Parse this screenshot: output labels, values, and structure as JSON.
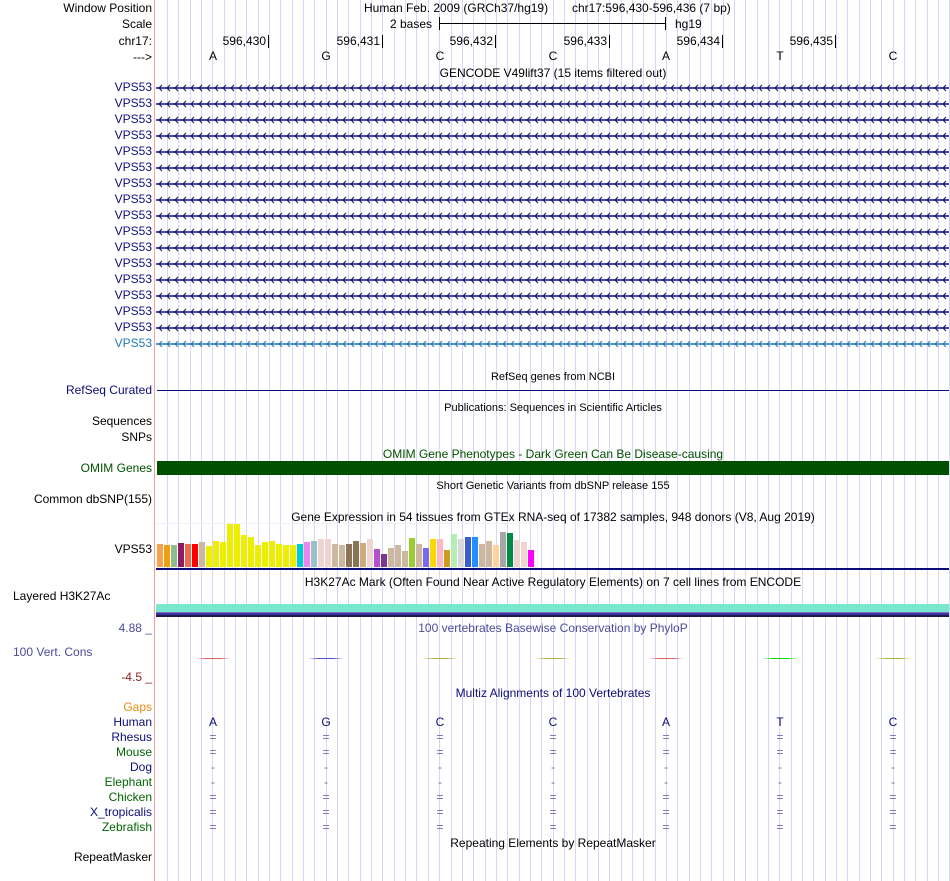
{
  "header": {
    "window_position_label": "Window Position",
    "scale_label": "Scale",
    "chrom_label": "chr17:",
    "strand_label": "--->",
    "assembly": "Human Feb. 2009 (GRCh37/hg19)",
    "position": "chr17:596,430-596,436 (7 bp)",
    "scale_text": "2 bases",
    "db": "hg19",
    "coords": [
      "596,430",
      "596,431",
      "596,432",
      "596,433",
      "596,434",
      "596,435"
    ],
    "bases": [
      "A",
      "G",
      "C",
      "C",
      "A",
      "T",
      "C"
    ]
  },
  "tracks": {
    "gencode": {
      "title": "GENCODE V49lift37 (15 items filtered out)",
      "items": [
        "VPS53",
        "VPS53",
        "VPS53",
        "VPS53",
        "VPS53",
        "VPS53",
        "VPS53",
        "VPS53",
        "VPS53",
        "VPS53",
        "VPS53",
        "VPS53",
        "VPS53",
        "VPS53",
        "VPS53",
        "VPS53",
        "VPS53"
      ],
      "color": "#0c0c78",
      "last_color": "#1f77b4"
    },
    "refseq": {
      "label": "RefSeq Curated",
      "title": "RefSeq genes from NCBI",
      "color": "#0c0c78"
    },
    "pubs": {
      "label": "Sequences",
      "title": "Publications: Sequences in Scientific Articles"
    },
    "snps": {
      "label": "SNPs"
    },
    "omim": {
      "label": "OMIM Genes",
      "title": "OMIM Gene Phenotypes - Dark Green Can Be Disease-causing",
      "color": "#005000"
    },
    "dbsnp": {
      "label": "Common dbSNP(155)",
      "title": "Short Genetic Variants from dbSNP release 155"
    },
    "gtex": {
      "label": "VPS53",
      "title": "Gene Expression in 54 tissues from GTEx RNA-seq of 17382 samples, 948 donors (V8, Aug 2019)",
      "bars": [
        {
          "c": "#f7a24c",
          "v": 0.54
        },
        {
          "c": "#f0a00f",
          "v": 0.52
        },
        {
          "c": "#8fbc8f",
          "v": 0.52
        },
        {
          "c": "#8b1c62",
          "v": 0.56
        },
        {
          "c": "#ee6a50",
          "v": 0.54
        },
        {
          "c": "#ff0000",
          "v": 0.54
        },
        {
          "c": "#cdb79e",
          "v": 0.58
        },
        {
          "c": "#eeee00",
          "v": 0.48
        },
        {
          "c": "#eeee00",
          "v": 0.6
        },
        {
          "c": "#eeee00",
          "v": 0.58
        },
        {
          "c": "#eeee00",
          "v": 1.0
        },
        {
          "c": "#eeee00",
          "v": 1.0
        },
        {
          "c": "#eeee00",
          "v": 0.74
        },
        {
          "c": "#eeee00",
          "v": 0.7
        },
        {
          "c": "#eeee00",
          "v": 0.52
        },
        {
          "c": "#eeee00",
          "v": 0.58
        },
        {
          "c": "#eeee00",
          "v": 0.6
        },
        {
          "c": "#eeee00",
          "v": 0.54
        },
        {
          "c": "#eeee00",
          "v": 0.52
        },
        {
          "c": "#eeee00",
          "v": 0.5
        },
        {
          "c": "#00cdcd",
          "v": 0.54
        },
        {
          "c": "#ee82ee",
          "v": 0.58
        },
        {
          "c": "#9ac0cd",
          "v": 0.6
        },
        {
          "c": "#eed5d2",
          "v": 0.66
        },
        {
          "c": "#eed5d2",
          "v": 0.64
        },
        {
          "c": "#cdb79e",
          "v": 0.54
        },
        {
          "c": "#cdb79e",
          "v": 0.52
        },
        {
          "c": "#8b7355",
          "v": 0.54
        },
        {
          "c": "#8b7355",
          "v": 0.6
        },
        {
          "c": "#cdaa7d",
          "v": 0.56
        },
        {
          "c": "#eed5d2",
          "v": 0.64
        },
        {
          "c": "#b452cd",
          "v": 0.42
        },
        {
          "c": "#7a378b",
          "v": 0.3
        },
        {
          "c": "#cdb79e",
          "v": 0.44
        },
        {
          "c": "#cdb79e",
          "v": 0.52
        },
        {
          "c": "#cdb79e",
          "v": 0.38
        },
        {
          "c": "#9acd32",
          "v": 0.68
        },
        {
          "c": "#cdb79e",
          "v": 0.54
        },
        {
          "c": "#7b68ee",
          "v": 0.44
        },
        {
          "c": "#ffd700",
          "v": 0.64
        },
        {
          "c": "#ffb6c1",
          "v": 0.64
        },
        {
          "c": "#cd9b1d",
          "v": 0.4
        },
        {
          "c": "#b4eeb4",
          "v": 0.76
        },
        {
          "c": "#d9d9d9",
          "v": 0.66
        },
        {
          "c": "#3a5fcd",
          "v": 0.7
        },
        {
          "c": "#1e90ff",
          "v": 0.7
        },
        {
          "c": "#cdb79e",
          "v": 0.54
        },
        {
          "c": "#cdb79e",
          "v": 0.6
        },
        {
          "c": "#ffd39b",
          "v": 0.5
        },
        {
          "c": "#a6a6a6",
          "v": 0.82
        },
        {
          "c": "#008b45",
          "v": 0.78
        },
        {
          "c": "#eed5d2",
          "v": 0.62
        },
        {
          "c": "#eed5d2",
          "v": 0.58
        },
        {
          "c": "#ff00ff",
          "v": 0.4
        }
      ]
    },
    "h3k27ac": {
      "label": "Layered H3K27Ac",
      "title": "H3K27Ac Mark (Often Found Near Active Regulatory Elements) on 7 cell lines from ENCODE"
    },
    "phylop": {
      "label": "100 Vert. Cons",
      "max_label": "4.88 _",
      "min_label": "-4.5 _",
      "title": "100 vertebrates Basewise Conservation by PhyloP",
      "colors": [
        "#e06060",
        "#5050c8",
        "#b0b040",
        "#b0b040",
        "#e06060",
        "#00dd00",
        "#b0b040"
      ]
    },
    "multiz": {
      "title": "Multiz Alignments of 100 Vertebrates",
      "gaps_label": "Gaps",
      "species": [
        {
          "name": "Human",
          "color": "#0c0c78",
          "row": [
            "A",
            "G",
            "C",
            "C",
            "A",
            "T",
            "C"
          ]
        },
        {
          "name": "Rhesus",
          "color": "#0c0c78",
          "row": [
            "=",
            "=",
            "=",
            "=",
            "=",
            "=",
            "="
          ]
        },
        {
          "name": "Mouse",
          "color": "#006400",
          "row": [
            "=",
            "=",
            "=",
            "=",
            "=",
            "=",
            "="
          ]
        },
        {
          "name": "Dog",
          "color": "#0c0c78",
          "row": [
            "-",
            "-",
            "-",
            "-",
            "-",
            "-",
            "-"
          ]
        },
        {
          "name": "Elephant",
          "color": "#006400",
          "row": [
            "-",
            "-",
            "-",
            "-",
            "-",
            "-",
            "-"
          ]
        },
        {
          "name": "Chicken",
          "color": "#006400",
          "row": [
            "=",
            "=",
            "=",
            "=",
            "=",
            "=",
            "="
          ]
        },
        {
          "name": "X_tropicalis",
          "color": "#0c0c78",
          "row": [
            "=",
            "=",
            "=",
            "=",
            "=",
            "=",
            "="
          ]
        },
        {
          "name": "Zebrafish",
          "color": "#006400",
          "row": [
            "=",
            "=",
            "=",
            "=",
            "=",
            "=",
            "="
          ]
        }
      ]
    },
    "repeatmasker": {
      "label": "RepeatMasker",
      "title": "Repeating Elements by RepeatMasker"
    }
  }
}
